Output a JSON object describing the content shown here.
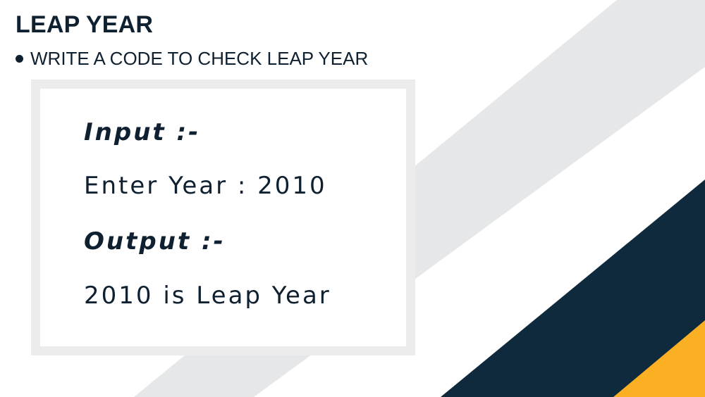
{
  "slide": {
    "title": "LEAP YEAR",
    "bullet": "WRITE A CODE TO CHECK LEAP YEAR",
    "example": {
      "input_label": "Input :-",
      "input_text": "Enter Year : 2010",
      "output_label": "Output :-",
      "output_text": "2010 is Leap Year"
    }
  },
  "colors": {
    "text": "#0f2030",
    "light_stripe": "#e6e7e8",
    "dark_stripe": "#0f2a3c",
    "accent_stripe": "#fbb024",
    "card_border": "#ececec"
  },
  "icons": {
    "bullet": "bullet-dot-icon"
  }
}
